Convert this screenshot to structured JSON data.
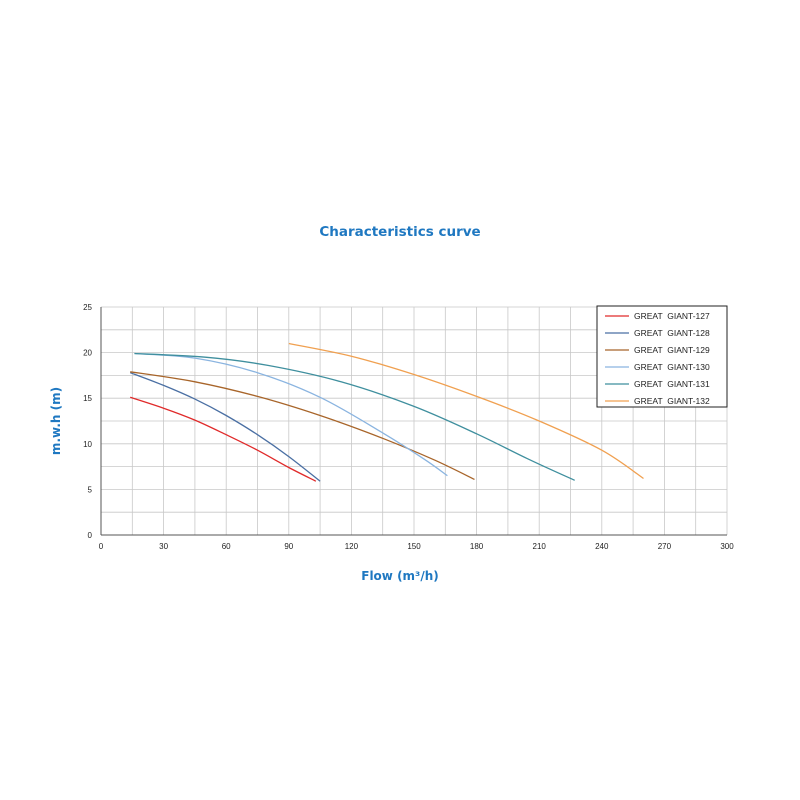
{
  "chart_data": {
    "type": "line",
    "title": "Characteristics curve",
    "xlabel": "Flow (m³/h)",
    "ylabel": "m.w.h (m)",
    "xlim": [
      0,
      300
    ],
    "ylim": [
      0,
      25
    ],
    "xticks": [
      0,
      30,
      60,
      90,
      120,
      150,
      180,
      210,
      240,
      270,
      300
    ],
    "yticks": [
      0,
      5,
      10,
      15,
      20,
      25
    ],
    "grid": true,
    "legend_position": "top-right",
    "title_color": "#1f78c1",
    "axis_title_color": "#1f78c1",
    "series": [
      {
        "name": "GREAT  GIANT-127",
        "color": "#e02a2a",
        "points": [
          [
            14,
            15.1
          ],
          [
            30,
            13.9
          ],
          [
            45,
            12.6
          ],
          [
            60,
            11.0
          ],
          [
            75,
            9.3
          ],
          [
            90,
            7.4
          ],
          [
            103,
            5.9
          ]
        ]
      },
      {
        "name": "GREAT  GIANT-128",
        "color": "#4a6fa3",
        "points": [
          [
            14,
            17.8
          ],
          [
            30,
            16.4
          ],
          [
            45,
            14.9
          ],
          [
            60,
            13.1
          ],
          [
            75,
            11.0
          ],
          [
            90,
            8.6
          ],
          [
            105,
            5.9
          ]
        ]
      },
      {
        "name": "GREAT  GIANT-129",
        "color": "#a8652a",
        "points": [
          [
            14,
            17.9
          ],
          [
            45,
            16.8
          ],
          [
            75,
            15.2
          ],
          [
            105,
            13.1
          ],
          [
            135,
            10.6
          ],
          [
            160,
            8.2
          ],
          [
            179,
            6.1
          ]
        ]
      },
      {
        "name": "GREAT  GIANT-130",
        "color": "#8ab4e0",
        "points": [
          [
            16,
            19.9
          ],
          [
            45,
            19.4
          ],
          [
            75,
            17.8
          ],
          [
            105,
            15.1
          ],
          [
            135,
            11.2
          ],
          [
            155,
            8.3
          ],
          [
            166,
            6.5
          ]
        ]
      },
      {
        "name": "GREAT  GIANT-131",
        "color": "#3f8f9e",
        "points": [
          [
            16,
            19.9
          ],
          [
            50,
            19.5
          ],
          [
            80,
            18.6
          ],
          [
            115,
            16.8
          ],
          [
            150,
            14.1
          ],
          [
            180,
            11.1
          ],
          [
            205,
            8.3
          ],
          [
            227,
            6.0
          ]
        ]
      },
      {
        "name": "GREAT  GIANT-132",
        "color": "#f0a050",
        "points": [
          [
            90,
            21.0
          ],
          [
            120,
            19.6
          ],
          [
            150,
            17.6
          ],
          [
            180,
            15.2
          ],
          [
            210,
            12.5
          ],
          [
            240,
            9.3
          ],
          [
            260,
            6.2
          ]
        ]
      }
    ]
  }
}
